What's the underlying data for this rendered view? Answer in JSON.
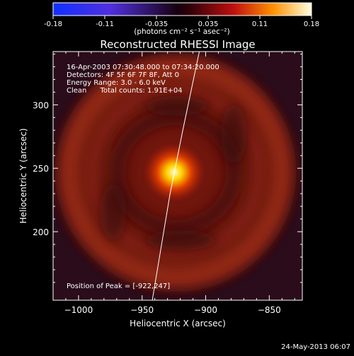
{
  "colorbar": {
    "ticks": [
      "-0.18",
      "-0.11",
      "-0.035",
      "0.035",
      "0.11",
      "0.18"
    ],
    "unit_label": "(photons cm⁻² s⁻¹ asec⁻²)"
  },
  "chart_data": {
    "type": "heatmap",
    "title": "Reconstructed RHESSI Image",
    "xlabel": "Heliocentric X (arcsec)",
    "ylabel": "Heliocentric Y (arcsec)",
    "xlim": [
      -1020,
      -824
    ],
    "ylim": [
      146,
      342
    ],
    "x_ticks": [
      -1000,
      -950,
      -900,
      -850
    ],
    "x_tick_labels": [
      "−1000",
      "−950",
      "−900",
      "−850"
    ],
    "y_ticks": [
      200,
      250,
      300
    ],
    "y_tick_labels": [
      "200",
      "250",
      "300"
    ],
    "colorbar_range": [
      -0.18,
      0.18
    ],
    "peak_position": [
      -922,
      247
    ],
    "limb_curve": [
      [
        -942,
        146
      ],
      [
        -928,
        230
      ],
      [
        -918,
        280
      ],
      [
        -905,
        342
      ]
    ],
    "info_lines": [
      "16-Apr-2003 07:30:48.000 to 07:34:20.000",
      "Detectors: 4F 5F 6F 7F 8F, Att 0",
      "Energy Range: 3.0 - 6.0 keV",
      "Clean      Total counts: 1.91E+04"
    ],
    "peak_label": "Position of Peak = [-922,247]"
  },
  "footer": {
    "date": "24-May-2013 06:07"
  }
}
